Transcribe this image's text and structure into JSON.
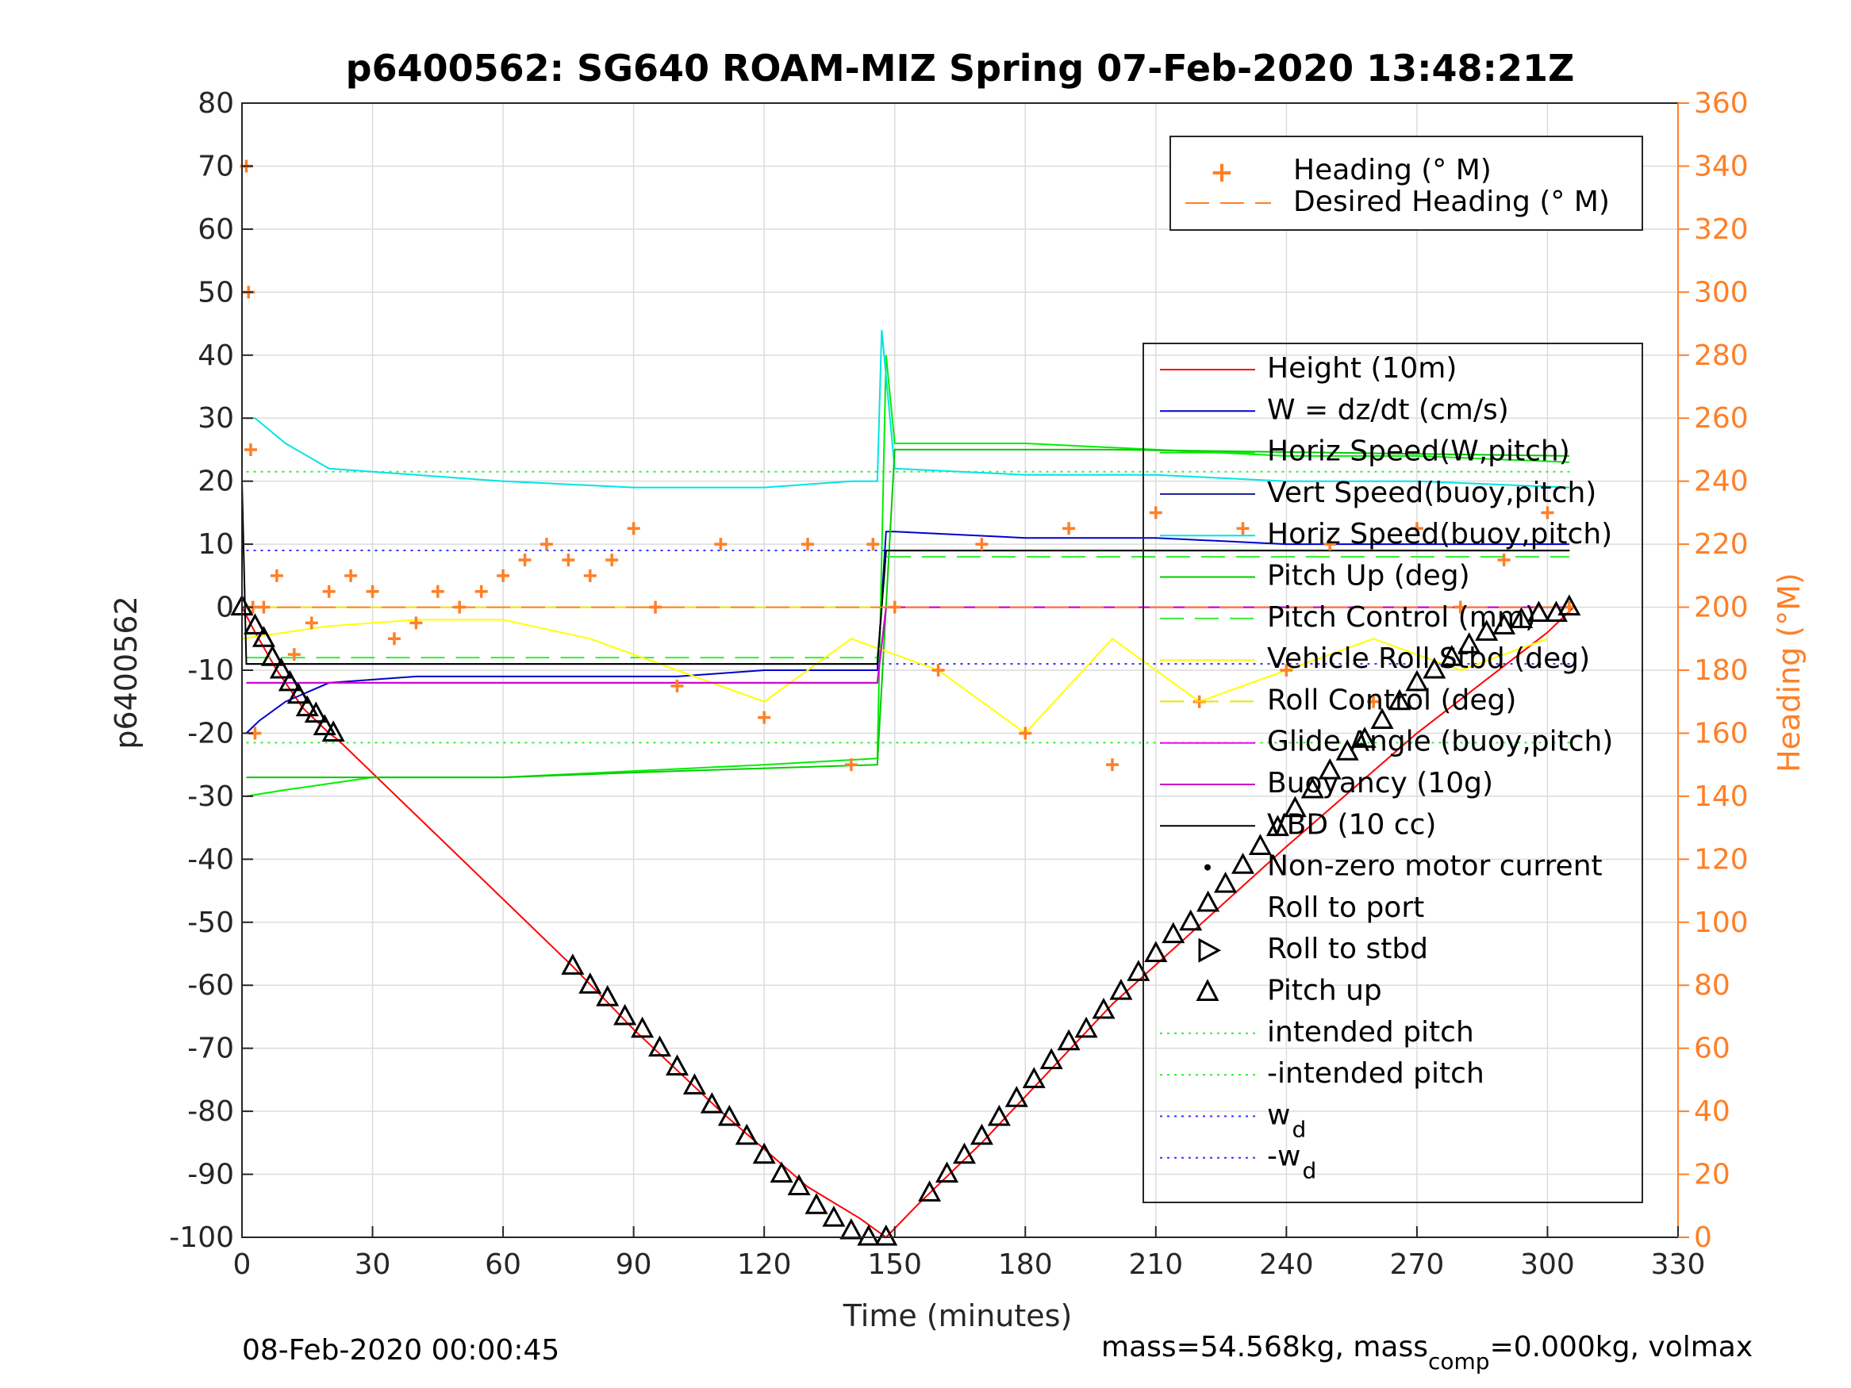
{
  "chart_data": {
    "type": "line",
    "title": "p6400562: SG640 ROAM-MIZ Spring 07-Feb-2020 13:48:21Z",
    "xlabel": "Time (minutes)",
    "ylabel": "p6400562",
    "y2label": "Heading (°M)",
    "xlim": [
      0,
      330
    ],
    "ylim": [
      -100,
      80
    ],
    "y2lim": [
      0,
      360
    ],
    "xticks": [
      0,
      30,
      60,
      90,
      120,
      150,
      180,
      210,
      240,
      270,
      300,
      330
    ],
    "yticks": [
      80,
      70,
      60,
      50,
      40,
      30,
      20,
      10,
      0,
      -10,
      -20,
      -30,
      -40,
      -50,
      -60,
      -70,
      -80,
      -90,
      -100
    ],
    "y2ticks": [
      360,
      340,
      320,
      300,
      280,
      260,
      240,
      220,
      200,
      180,
      160,
      140,
      120,
      100,
      80,
      60,
      40,
      20,
      0
    ],
    "grid": true,
    "colors": {
      "height": "#ff0000",
      "w": "#0000cc",
      "horiz_speed_w": "#00ee00",
      "vert_speed_buoy": "#1a1a8c",
      "horiz_speed_buoy": "#00e5e5",
      "pitch_up": "#00cc00",
      "pitch_control": "#33ee33",
      "roll_stbd": "#ffff00",
      "roll_control": "#e6e600",
      "glide_angle": "#ff00ff",
      "buoyancy": "#cc00cc",
      "vbd": "#000000",
      "heading": "#ff7f27",
      "intended_pitch": "#33ee33",
      "wd": "#3333ff",
      "axis_right": "#ff7f27"
    },
    "series": [
      {
        "name": "Height (10m)",
        "x": [
          0,
          3,
          8,
          14,
          20,
          22,
          76,
          90,
          110,
          130,
          142,
          148,
          155,
          170,
          200,
          240,
          270,
          300,
          306
        ],
        "values": [
          0,
          -4,
          -10,
          -16,
          -20,
          -21,
          -57,
          -67,
          -80,
          -92,
          -97,
          -100,
          -95,
          -85,
          -63,
          -38,
          -20,
          -4,
          0
        ]
      },
      {
        "name": "W = dz/dt (cm/s)",
        "x": [
          1,
          4,
          10,
          20,
          40,
          60,
          80,
          100,
          120,
          146,
          148,
          150,
          180,
          210,
          240,
          270,
          305
        ],
        "values": [
          -20,
          -18,
          -15,
          -12,
          -11,
          -11,
          -11,
          -11,
          -10,
          -10,
          12,
          12,
          11,
          11,
          10,
          10,
          10
        ]
      },
      {
        "name": "Horiz Speed(W,pitch)",
        "x": [
          1,
          10,
          30,
          60,
          90,
          120,
          146,
          148,
          150,
          180,
          210,
          240,
          270,
          305
        ],
        "values": [
          -30,
          -29,
          -27,
          -27,
          -26,
          -25,
          -24,
          40,
          26,
          26,
          25,
          24,
          24,
          23
        ]
      },
      {
        "name": "Vert Speed(buoy,pitch)",
        "x": [
          1,
          20,
          60,
          100,
          146,
          148,
          200,
          305
        ],
        "values": [
          -9,
          -9,
          -9,
          -9,
          -9,
          9,
          9,
          9
        ]
      },
      {
        "name": "Horiz Speed(buoy,pitch)",
        "x": [
          1,
          3,
          10,
          20,
          40,
          60,
          90,
          120,
          140,
          146,
          147,
          150,
          180,
          210,
          240,
          270,
          305
        ],
        "values": [
          30,
          30,
          26,
          22,
          21,
          20,
          19,
          19,
          20,
          20,
          44,
          22,
          21,
          21,
          20,
          20,
          19
        ]
      },
      {
        "name": "Pitch Up (deg)",
        "x": [
          1,
          20,
          60,
          100,
          146,
          150,
          200,
          305
        ],
        "values": [
          -27,
          -27,
          -27,
          -26,
          -25,
          25,
          25,
          24
        ]
      },
      {
        "name": "Pitch Control (mm)",
        "x": [
          1,
          146,
          148,
          305
        ],
        "values": [
          -8,
          -8,
          8,
          8
        ]
      },
      {
        "name": "Vehicle Roll Stbd (deg)",
        "x": [
          0,
          20,
          40,
          60,
          80,
          100,
          120,
          140,
          160,
          180,
          200,
          220,
          240,
          260,
          280,
          300
        ],
        "values": [
          -5,
          -3,
          -2,
          -2,
          -5,
          -10,
          -15,
          -5,
          -10,
          -20,
          -5,
          -15,
          -10,
          -5,
          -10,
          -5
        ]
      },
      {
        "name": "Roll Control (deg)",
        "x": [
          0,
          306
        ],
        "values": [
          0,
          0
        ]
      },
      {
        "name": "Glide Angle (buoy,pitch)",
        "x": [
          1,
          146,
          148,
          305
        ],
        "values": [
          -12,
          -12,
          0,
          0
        ]
      },
      {
        "name": "Buoyancy (10g)",
        "x": [
          1,
          146,
          148,
          305
        ],
        "values": [
          -12,
          -12,
          0,
          0
        ]
      },
      {
        "name": "VBD (10 cc)",
        "x": [
          0,
          1,
          4,
          146,
          148,
          305
        ],
        "values": [
          20,
          -9,
          -9,
          -9,
          9,
          9
        ]
      },
      {
        "name": "Heading (° M)",
        "axis": "right",
        "x": [
          1,
          1.5,
          2,
          2.5,
          3,
          5,
          8,
          12,
          16,
          20,
          25,
          30,
          35,
          40,
          45,
          50,
          55,
          60,
          65,
          70,
          75,
          80,
          85,
          90,
          95,
          100,
          110,
          120,
          130,
          140,
          145,
          150,
          160,
          170,
          180,
          190,
          200,
          210,
          220,
          230,
          240,
          250,
          260,
          270,
          280,
          290,
          300,
          305
        ],
        "values": [
          340,
          300,
          250,
          200,
          160,
          200,
          210,
          185,
          195,
          205,
          210,
          205,
          190,
          195,
          205,
          200,
          205,
          210,
          215,
          220,
          215,
          210,
          215,
          225,
          200,
          175,
          220,
          165,
          220,
          150,
          220,
          200,
          180,
          220,
          160,
          225,
          150,
          230,
          170,
          225,
          180,
          220,
          170,
          225,
          200,
          215,
          230,
          200
        ]
      },
      {
        "name": "Desired Heading (° M)",
        "axis": "right",
        "x": [
          0,
          306
        ],
        "values": [
          200,
          200
        ]
      }
    ],
    "reference_lines": [
      {
        "name": "intended pitch",
        "value": 21.5
      },
      {
        "name": "-intended pitch",
        "value": -21.5
      },
      {
        "name": "w_d",
        "value": 9
      },
      {
        "name": "-w_d",
        "value": -9
      }
    ],
    "markers": {
      "pitch_up_x": [
        0,
        3,
        5,
        7,
        9,
        11,
        13,
        15,
        17,
        19,
        21,
        76,
        80,
        84,
        88,
        92,
        96,
        100,
        104,
        108,
        112,
        116,
        120,
        124,
        128,
        132,
        136,
        140,
        144,
        148,
        158,
        162,
        166,
        170,
        174,
        178,
        182,
        186,
        190,
        194,
        198,
        202,
        206,
        210,
        214,
        218,
        222,
        226,
        230,
        234,
        238,
        242,
        246,
        250,
        254,
        258,
        262,
        266,
        270,
        274,
        278,
        282,
        286,
        290,
        294,
        298,
        302,
        305
      ],
      "pitch_up_y": [
        0,
        -3,
        -5,
        -8,
        -10,
        -12,
        -14,
        -16,
        -17,
        -19,
        -20,
        -57,
        -60,
        -62,
        -65,
        -67,
        -70,
        -73,
        -76,
        -79,
        -81,
        -84,
        -87,
        -90,
        -92,
        -95,
        -97,
        -99,
        -100,
        -100,
        -93,
        -90,
        -87,
        -84,
        -81,
        -78,
        -75,
        -72,
        -69,
        -67,
        -64,
        -61,
        -58,
        -55,
        -52,
        -50,
        -47,
        -44,
        -41,
        -38,
        -35,
        -32,
        -29,
        -26,
        -23,
        -21,
        -18,
        -15,
        -12,
        -10,
        -8,
        -6,
        -4,
        -3,
        -2,
        -1,
        -1,
        0
      ]
    },
    "legend_upper": {
      "placement": "top-right",
      "entries": [
        "Heading (° M)",
        "Desired Heading (° M)"
      ]
    },
    "legend_lower": {
      "placement": "right",
      "entries": [
        "Height (10m)",
        "W = dz/dt (cm/s)",
        "Horiz Speed(W,pitch)",
        "Vert Speed(buoy,pitch)",
        "Horiz Speed(buoy,pitch)",
        "Pitch Up (deg)",
        "Pitch Control (mm)",
        "Vehicle Roll Stbd (deg)",
        "Roll Control (deg)",
        "Glide Angle (buoy,pitch)",
        "Buoyancy (10g)",
        "VBD (10 cc)",
        "Non-zero motor current",
        "Roll to port",
        "Roll to stbd",
        "Pitch up",
        "intended pitch",
        "-intended pitch",
        "w",
        "-w"
      ],
      "subscript": "d"
    },
    "footer_left": "08-Feb-2020 00:00:45",
    "footer_right_prefix": "mass=54.568kg, mass",
    "footer_right_sub": "comp",
    "footer_right_suffix": "=0.000kg, volmax"
  }
}
